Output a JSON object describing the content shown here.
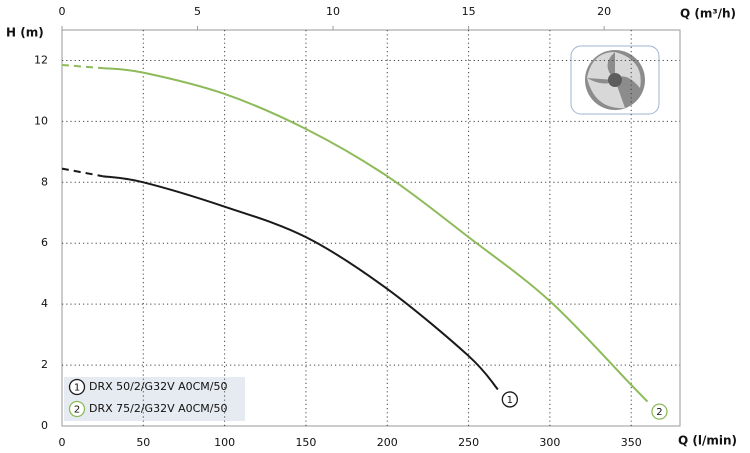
{
  "chart_data": {
    "type": "line",
    "ylabel": "H (m)",
    "xlabel": "Q (l/min)",
    "x2label": "Q (m³/h)",
    "xlim": [
      0,
      380
    ],
    "xticks": [
      0,
      50,
      100,
      150,
      200,
      250,
      300,
      350
    ],
    "x2lim": [
      0,
      22.8
    ],
    "x2ticks": [
      0,
      5,
      10,
      15,
      20
    ],
    "ylim": [
      0,
      13
    ],
    "yticks": [
      0,
      2,
      4,
      6,
      8,
      10,
      12
    ],
    "grid": true,
    "legend": "lower left",
    "series": [
      {
        "name": "DRX 50/2/G32V A0CM/50",
        "label": "1",
        "color": "#1a1a1a",
        "dashed_to": 25,
        "x": [
          0,
          25,
          50,
          100,
          150,
          200,
          250,
          268
        ],
        "values": [
          8.45,
          8.2,
          8.0,
          7.2,
          6.2,
          4.5,
          2.3,
          1.2
        ]
      },
      {
        "name": "DRX 75/2/G32V A0CM/50",
        "label": "2",
        "color": "#8dbb5a",
        "dashed_to": 25,
        "x": [
          0,
          25,
          50,
          100,
          150,
          200,
          250,
          300,
          350,
          360
        ],
        "values": [
          11.85,
          11.75,
          11.6,
          10.9,
          9.75,
          8.2,
          6.2,
          4.1,
          1.35,
          0.8
        ]
      }
    ]
  }
}
